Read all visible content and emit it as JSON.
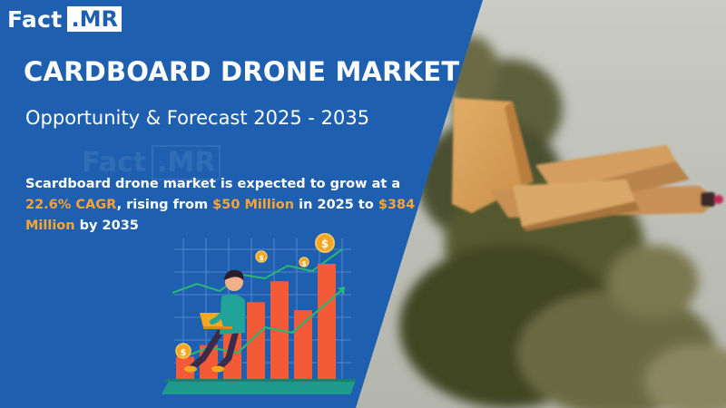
{
  "brand": {
    "logo_left": "Fact",
    "logo_right": ".MR",
    "watermark_left": "Fact",
    "watermark_right": ".MR"
  },
  "header": {
    "title": "CARDBOARD DRONE MARKET",
    "subtitle": "Opportunity & Forecast 2025 - 2035"
  },
  "summary": {
    "part1": "Scardboard drone market is expected to grow at a ",
    "cagr": "22.6% CAGR",
    "part2": ", rising from ",
    "start_value": "$50 Million",
    "part3": " in 2025 to ",
    "end_value": "$384 Million",
    "part4": " by 2035"
  },
  "illustration": {
    "bar_heights_relative": [
      0.2,
      0.3,
      0.5,
      0.67,
      0.85,
      0.6,
      1.0
    ],
    "coin_symbol": "$",
    "icons": [
      "bar-chart-icon",
      "person-with-laptop-icon",
      "trend-arrow-icon",
      "coin-icon"
    ]
  },
  "colors": {
    "panel_blue": "#1f5fb0",
    "highlight_orange": "#f7a534",
    "bar_orange": "#f25a38",
    "teal_base": "#1e9a8c",
    "coin_gold": "#f5a623"
  }
}
